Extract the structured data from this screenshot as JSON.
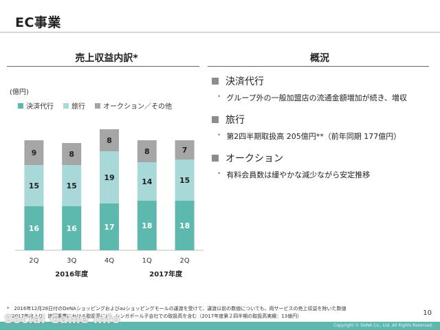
{
  "page": {
    "title": "EC事業",
    "page_number": "10"
  },
  "left_panel": {
    "heading": "売上収益内訳*",
    "unit": "(億円)"
  },
  "right_panel": {
    "heading": "概況",
    "items": [
      {
        "head": "決済代行",
        "sub": "グループ外の一般加盟店の流通金額増加が続き、増収"
      },
      {
        "head": "旅行",
        "sub": "第2四半期取扱高 205億円**（前年同期 177億円）"
      },
      {
        "head": "オークション",
        "sub": "有料会員数は緩やかな減少ながら安定推移"
      }
    ]
  },
  "chart_data": {
    "type": "bar",
    "stacked": true,
    "categories": [
      "2Q",
      "3Q",
      "4Q",
      "1Q",
      "2Q"
    ],
    "groups": [
      {
        "label": "2016年度",
        "categories": [
          0,
          1,
          2
        ]
      },
      {
        "label": "2017年度",
        "categories": [
          3,
          4
        ]
      }
    ],
    "series": [
      {
        "name": "決済代行",
        "values": [
          16,
          16,
          17,
          18,
          18
        ],
        "color": "#5db8ad"
      },
      {
        "name": "旅行",
        "values": [
          15,
          15,
          19,
          14,
          15
        ],
        "color": "#a8d8d8"
      },
      {
        "name": "オークション／その他",
        "values": [
          9,
          8,
          8,
          8,
          7
        ],
        "color": "#a6a6a6"
      }
    ],
    "ylim": [
      0,
      46
    ],
    "grid": false,
    "legend_position": "top-left"
  },
  "footnotes": [
    "*　2016年12月28日付のDeNAショッピングおよびauショッピングモールの譲渡を受けて、譲渡以前の数値についても、両サービスの売上収益を除いた数値",
    "**2017年度より、旅行事業における取扱高には、シンガポール子会社での取扱高を含む（2017年度第２四半期の取扱高実績：13億円）"
  ],
  "copyright": "Copyright © DeNA Co., Ltd. All Rights Reserved.",
  "watermark": "Social Game Info"
}
